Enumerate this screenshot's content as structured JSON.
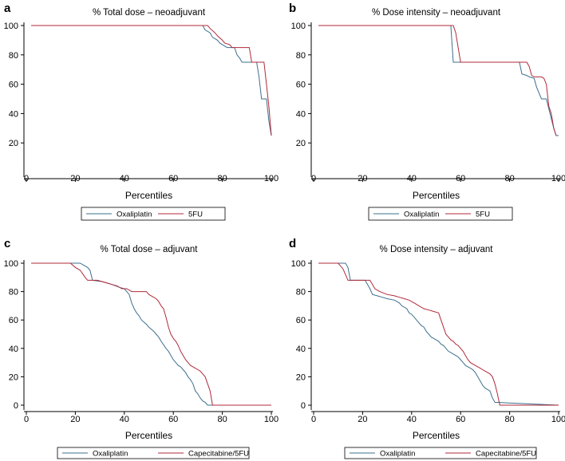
{
  "colors": {
    "oxaliplatin": "#3d6f8e",
    "fluoro": "#b02a3a"
  },
  "chart_data": [
    {
      "type": "line",
      "panel": "a",
      "title": "% Total dose – neoadjuvant",
      "xlabel": "Percentiles",
      "ylabel": "",
      "xlim": [
        0,
        100
      ],
      "ylim": [
        0,
        100
      ],
      "xticks": [
        "0",
        "20",
        "40",
        "60",
        "80",
        "100"
      ],
      "yticks": [
        "20",
        "40",
        "60",
        "80",
        "100"
      ],
      "legend": [
        "Oxaliplatin",
        "5FU"
      ],
      "series": [
        {
          "name": "Oxaliplatin",
          "color": "#3d6f8e",
          "x": [
            2,
            72,
            73,
            75,
            76,
            78,
            79,
            81,
            82,
            85,
            86,
            87,
            88,
            94,
            95,
            96,
            97,
            98,
            99,
            100
          ],
          "y": [
            100,
            100,
            97,
            95,
            92,
            90,
            88,
            86,
            85,
            85,
            80,
            78,
            75,
            75,
            65,
            50,
            50,
            50,
            35,
            25
          ]
        },
        {
          "name": "5FU",
          "color": "#b02a3a",
          "x": [
            2,
            74,
            75,
            77,
            78,
            80,
            81,
            83,
            84,
            86,
            87,
            91,
            92,
            97,
            98,
            99,
            100
          ],
          "y": [
            100,
            100,
            98,
            95,
            93,
            90,
            88,
            87,
            85,
            85,
            85,
            85,
            75,
            75,
            60,
            45,
            25
          ]
        }
      ]
    },
    {
      "type": "line",
      "panel": "b",
      "title": "% Dose intensity – neoadjuvant",
      "xlabel": "Percentiles",
      "ylabel": "",
      "xlim": [
        0,
        100
      ],
      "ylim": [
        0,
        100
      ],
      "xticks": [
        "0",
        "20",
        "40",
        "60",
        "80",
        "100"
      ],
      "yticks": [
        "20",
        "40",
        "60",
        "80",
        "100"
      ],
      "legend": [
        "Oxaliplatin",
        "5FU"
      ],
      "series": [
        {
          "name": "Oxaliplatin",
          "color": "#3d6f8e",
          "x": [
            2,
            56,
            57,
            84,
            85,
            87,
            88,
            90,
            91,
            93,
            94,
            95,
            98,
            99,
            100
          ],
          "y": [
            100,
            100,
            75,
            75,
            67,
            66,
            65,
            64,
            58,
            50,
            50,
            50,
            30,
            25,
            25
          ]
        },
        {
          "name": "5FU",
          "color": "#b02a3a",
          "x": [
            2,
            57,
            58,
            59,
            60,
            86,
            87,
            88,
            89,
            90,
            93,
            94,
            95,
            96,
            97,
            98,
            99
          ],
          "y": [
            100,
            100,
            95,
            85,
            75,
            75,
            75,
            72,
            66,
            65,
            65,
            64,
            60,
            45,
            40,
            30,
            25
          ]
        }
      ]
    },
    {
      "type": "line",
      "panel": "c",
      "title": "% Total dose – adjuvant",
      "xlabel": "Percentiles",
      "ylabel": "",
      "xlim": [
        0,
        100
      ],
      "ylim": [
        0,
        100
      ],
      "xticks": [
        "0",
        "20",
        "40",
        "60",
        "80",
        "100"
      ],
      "yticks": [
        "0",
        "20",
        "40",
        "60",
        "80",
        "100"
      ],
      "legend": [
        "Oxaliplatin",
        "Capecitabine/5FU"
      ],
      "series": [
        {
          "name": "Oxaliplatin",
          "color": "#3d6f8e",
          "x": [
            2,
            22,
            24,
            25,
            26,
            27,
            31,
            33,
            35,
            38,
            40,
            42,
            43,
            44,
            45,
            46,
            47,
            49,
            50,
            52,
            53,
            54,
            55,
            57,
            58,
            59,
            60,
            61,
            62,
            63,
            64,
            65,
            66,
            67,
            68,
            69,
            70,
            71,
            72,
            73,
            74,
            100
          ],
          "y": [
            100,
            100,
            98,
            97,
            95,
            88,
            87,
            86,
            85,
            83,
            82,
            78,
            72,
            68,
            65,
            63,
            60,
            57,
            55,
            52,
            50,
            48,
            45,
            40,
            38,
            35,
            32,
            30,
            28,
            27,
            25,
            23,
            20,
            18,
            15,
            10,
            8,
            5,
            3,
            2,
            0,
            0
          ]
        },
        {
          "name": "Capecitabine/5FU",
          "color": "#b02a3a",
          "x": [
            2,
            18,
            20,
            22,
            24,
            25,
            29,
            31,
            33,
            35,
            37,
            39,
            41,
            43,
            45,
            47,
            49,
            50,
            52,
            53,
            54,
            55,
            56,
            57,
            58,
            59,
            60,
            61,
            62,
            63,
            64,
            65,
            66,
            67,
            68,
            69,
            70,
            71,
            72,
            73,
            74,
            75,
            76,
            100
          ],
          "y": [
            100,
            100,
            97,
            95,
            90,
            88,
            88,
            87,
            86,
            85,
            84,
            82,
            82,
            80,
            80,
            80,
            80,
            78,
            76,
            75,
            73,
            70,
            68,
            62,
            55,
            50,
            47,
            45,
            42,
            38,
            35,
            32,
            30,
            28,
            27,
            26,
            25,
            24,
            22,
            20,
            15,
            10,
            0,
            0
          ]
        }
      ]
    },
    {
      "type": "line",
      "panel": "d",
      "title": "% Dose intensity – adjuvant",
      "xlabel": "Percentiles",
      "ylabel": "",
      "xlim": [
        0,
        100
      ],
      "ylim": [
        0,
        100
      ],
      "xticks": [
        "0",
        "20",
        "40",
        "60",
        "80",
        "100"
      ],
      "yticks": [
        "0",
        "20",
        "40",
        "60",
        "80",
        "100"
      ],
      "legend": [
        "Oxaliplatin",
        "Capecitabine/5FU"
      ],
      "series": [
        {
          "name": "Oxaliplatin",
          "color": "#3d6f8e",
          "x": [
            2,
            13,
            14,
            15,
            21,
            23,
            24,
            26,
            28,
            30,
            33,
            35,
            36,
            38,
            39,
            40,
            41,
            42,
            43,
            44,
            45,
            46,
            47,
            48,
            49,
            50,
            51,
            52,
            53,
            54,
            55,
            56,
            57,
            58,
            59,
            60,
            61,
            62,
            63,
            64,
            65,
            66,
            67,
            68,
            69,
            70,
            71,
            72,
            73,
            74,
            100
          ],
          "y": [
            100,
            100,
            97,
            88,
            88,
            82,
            78,
            77,
            76,
            75,
            74,
            72,
            70,
            68,
            65,
            64,
            62,
            60,
            58,
            56,
            55,
            52,
            50,
            48,
            47,
            46,
            45,
            43,
            42,
            40,
            38,
            37,
            36,
            35,
            34,
            32,
            30,
            28,
            27,
            26,
            25,
            23,
            20,
            17,
            14,
            12,
            11,
            10,
            5,
            2,
            0
          ]
        },
        {
          "name": "Capecitabine/5FU",
          "color": "#b02a3a",
          "x": [
            2,
            10,
            12,
            13,
            14,
            23,
            25,
            27,
            30,
            33,
            35,
            37,
            39,
            41,
            43,
            45,
            47,
            49,
            51,
            52,
            53,
            54,
            55,
            56,
            57,
            58,
            59,
            60,
            61,
            62,
            63,
            64,
            65,
            66,
            67,
            68,
            69,
            70,
            71,
            72,
            73,
            74,
            75,
            76,
            100
          ],
          "y": [
            100,
            100,
            96,
            92,
            88,
            88,
            82,
            80,
            78,
            77,
            76,
            75,
            74,
            72,
            70,
            68,
            67,
            66,
            65,
            60,
            55,
            50,
            48,
            46,
            45,
            43,
            42,
            40,
            38,
            35,
            32,
            30,
            29,
            28,
            27,
            26,
            25,
            24,
            23,
            22,
            20,
            15,
            8,
            0,
            0
          ]
        }
      ]
    }
  ]
}
